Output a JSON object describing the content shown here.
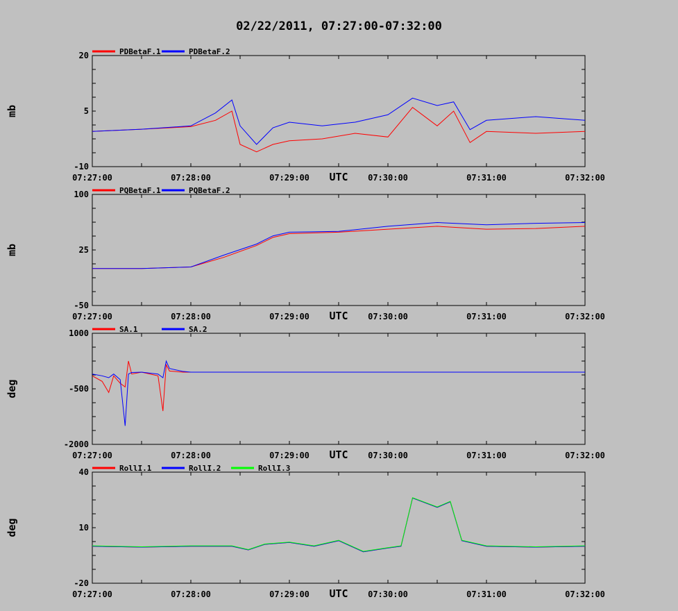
{
  "title": "02/22/2011, 07:27:00-07:32:00",
  "axis_unit_label": "UTC",
  "time_ticks": [
    "07:27:00",
    "07:28:00",
    "07:29:00",
    "07:30:00",
    "07:31:00",
    "07:32:00"
  ],
  "chart_data": [
    {
      "type": "line",
      "ylabel": "mb",
      "xlabel": "UTC",
      "xlim": [
        "07:27:00",
        "07:32:00"
      ],
      "ylim": [
        -10,
        20
      ],
      "yticks": [
        -10,
        5,
        20
      ],
      "grid": false,
      "legend_position": "top-left",
      "series": [
        {
          "name": "PDBetaF.1",
          "color": "#ff0000",
          "x": [
            "07:27:00",
            "07:27:30",
            "07:28:00",
            "07:28:15",
            "07:28:25",
            "07:28:30",
            "07:28:40",
            "07:28:50",
            "07:29:00",
            "07:29:20",
            "07:29:40",
            "07:30:00",
            "07:30:15",
            "07:30:30",
            "07:30:40",
            "07:30:50",
            "07:31:00",
            "07:31:30",
            "07:32:00"
          ],
          "values": [
            -0.5,
            0.1,
            0.8,
            2.5,
            5.0,
            -4.0,
            -6.0,
            -4.0,
            -3.0,
            -2.5,
            -1.0,
            -2.0,
            6.0,
            1.0,
            5.0,
            -3.5,
            -0.5,
            -1.0,
            -0.5
          ]
        },
        {
          "name": "PDBetaF.2",
          "color": "#0000ff",
          "x": [
            "07:27:00",
            "07:27:30",
            "07:28:00",
            "07:28:15",
            "07:28:25",
            "07:28:30",
            "07:28:40",
            "07:28:50",
            "07:29:00",
            "07:29:20",
            "07:29:40",
            "07:30:00",
            "07:30:15",
            "07:30:30",
            "07:30:40",
            "07:30:50",
            "07:31:00",
            "07:31:30",
            "07:32:00"
          ],
          "values": [
            -0.5,
            0.1,
            1.0,
            4.5,
            8.0,
            1.0,
            -4.0,
            0.5,
            2.0,
            1.0,
            2.0,
            4.0,
            8.5,
            6.5,
            7.5,
            0.0,
            2.5,
            3.5,
            2.5
          ]
        }
      ]
    },
    {
      "type": "line",
      "ylabel": "mb",
      "xlabel": "UTC",
      "xlim": [
        "07:27:00",
        "07:32:00"
      ],
      "ylim": [
        -50,
        100
      ],
      "yticks": [
        -50,
        25,
        100
      ],
      "grid": false,
      "legend_position": "top-left",
      "series": [
        {
          "name": "PQBetaF.1",
          "color": "#ff0000",
          "x": [
            "07:27:00",
            "07:27:30",
            "07:28:00",
            "07:28:20",
            "07:28:40",
            "07:28:50",
            "07:29:00",
            "07:29:30",
            "07:30:00",
            "07:30:30",
            "07:31:00",
            "07:31:30",
            "07:32:00"
          ],
          "values": [
            0.0,
            0.0,
            2.0,
            15.0,
            31.0,
            42.0,
            47.0,
            49.0,
            53.0,
            57.0,
            53.0,
            54.0,
            57.0
          ]
        },
        {
          "name": "PQBetaF.2",
          "color": "#0000ff",
          "x": [
            "07:27:00",
            "07:27:30",
            "07:28:00",
            "07:28:20",
            "07:28:40",
            "07:28:50",
            "07:29:00",
            "07:29:30",
            "07:30:00",
            "07:30:30",
            "07:31:00",
            "07:31:30",
            "07:32:00"
          ],
          "values": [
            0.0,
            0.0,
            2.0,
            18.0,
            33.0,
            44.0,
            49.0,
            50.0,
            57.0,
            62.0,
            59.0,
            61.0,
            62.0
          ]
        }
      ]
    },
    {
      "type": "line",
      "ylabel": "deg",
      "xlabel": "UTC",
      "xlim": [
        "07:27:00",
        "07:32:00"
      ],
      "ylim": [
        -2000,
        1000
      ],
      "yticks": [
        -2000,
        -500,
        1000
      ],
      "grid": false,
      "legend_position": "top-left",
      "series": [
        {
          "name": "SA.1",
          "color": "#ff0000",
          "x": [
            "07:27:00",
            "07:27:06",
            "07:27:10",
            "07:27:13",
            "07:27:17",
            "07:27:20",
            "07:27:22",
            "07:27:24",
            "07:27:30",
            "07:27:40",
            "07:27:43",
            "07:27:45",
            "07:27:47",
            "07:27:55",
            "07:28:00",
            "07:29:00",
            "07:30:00",
            "07:31:00",
            "07:32:00"
          ],
          "values": [
            -150,
            -300,
            -600,
            -150,
            -350,
            -450,
            250,
            -100,
            -50,
            -150,
            -1100,
            150,
            -20,
            -50,
            -50,
            -50,
            -50,
            -50,
            -50
          ]
        },
        {
          "name": "SA.2",
          "color": "#0000ff",
          "x": [
            "07:27:00",
            "07:27:06",
            "07:27:10",
            "07:27:13",
            "07:27:17",
            "07:27:20",
            "07:27:22",
            "07:27:24",
            "07:27:30",
            "07:27:40",
            "07:27:43",
            "07:27:45",
            "07:27:47",
            "07:27:55",
            "07:28:00",
            "07:29:00",
            "07:30:00",
            "07:31:00",
            "07:32:00"
          ],
          "values": [
            -100,
            -150,
            -200,
            -100,
            -250,
            -1500,
            -100,
            -60,
            -50,
            -100,
            -200,
            250,
            50,
            -30,
            -50,
            -50,
            -50,
            -50,
            -50
          ]
        }
      ]
    },
    {
      "type": "line",
      "ylabel": "deg",
      "xlabel": "UTC",
      "xlim": [
        "07:27:00",
        "07:32:00"
      ],
      "ylim": [
        -20,
        40
      ],
      "yticks": [
        -20,
        10,
        40
      ],
      "grid": false,
      "legend_position": "top-left",
      "series": [
        {
          "name": "RollI.1",
          "color": "#ff0000",
          "x": [
            "07:27:00",
            "07:27:30",
            "07:28:00",
            "07:28:25",
            "07:28:35",
            "07:28:45",
            "07:29:00",
            "07:29:15",
            "07:29:30",
            "07:29:45",
            "07:30:00",
            "07:30:08",
            "07:30:15",
            "07:30:30",
            "07:30:38",
            "07:30:45",
            "07:31:00",
            "07:31:30",
            "07:32:00"
          ],
          "values": [
            0.0,
            -0.5,
            0.0,
            0.0,
            -2.0,
            1.0,
            2.0,
            0.0,
            3.0,
            -3.0,
            -1.0,
            0.0,
            26.0,
            21.0,
            24.0,
            3.0,
            0.0,
            -0.5,
            0.0
          ]
        },
        {
          "name": "RollI.2",
          "color": "#0000ff",
          "x": [
            "07:27:00",
            "07:27:30",
            "07:28:00",
            "07:28:25",
            "07:28:35",
            "07:28:45",
            "07:29:00",
            "07:29:15",
            "07:29:30",
            "07:29:45",
            "07:30:00",
            "07:30:08",
            "07:30:15",
            "07:30:30",
            "07:30:38",
            "07:30:45",
            "07:31:00",
            "07:31:30",
            "07:32:00"
          ],
          "values": [
            0.0,
            -0.5,
            0.0,
            0.0,
            -2.0,
            1.0,
            2.0,
            0.0,
            3.0,
            -3.0,
            -1.0,
            0.0,
            26.0,
            21.0,
            24.0,
            3.0,
            0.0,
            -0.5,
            0.0
          ]
        },
        {
          "name": "RollI.3",
          "color": "#00ff00",
          "x": [
            "07:27:00",
            "07:27:30",
            "07:28:00",
            "07:28:25",
            "07:28:35",
            "07:28:45",
            "07:29:00",
            "07:29:15",
            "07:29:30",
            "07:29:45",
            "07:30:00",
            "07:30:08",
            "07:30:15",
            "07:30:30",
            "07:30:38",
            "07:30:45",
            "07:31:00",
            "07:31:30",
            "07:32:00"
          ],
          "values": [
            0.2,
            -0.3,
            0.2,
            0.2,
            -1.8,
            1.2,
            2.2,
            0.2,
            3.2,
            -2.8,
            -0.8,
            0.2,
            26.2,
            21.2,
            24.2,
            3.2,
            0.2,
            -0.3,
            0.2
          ]
        }
      ]
    }
  ]
}
